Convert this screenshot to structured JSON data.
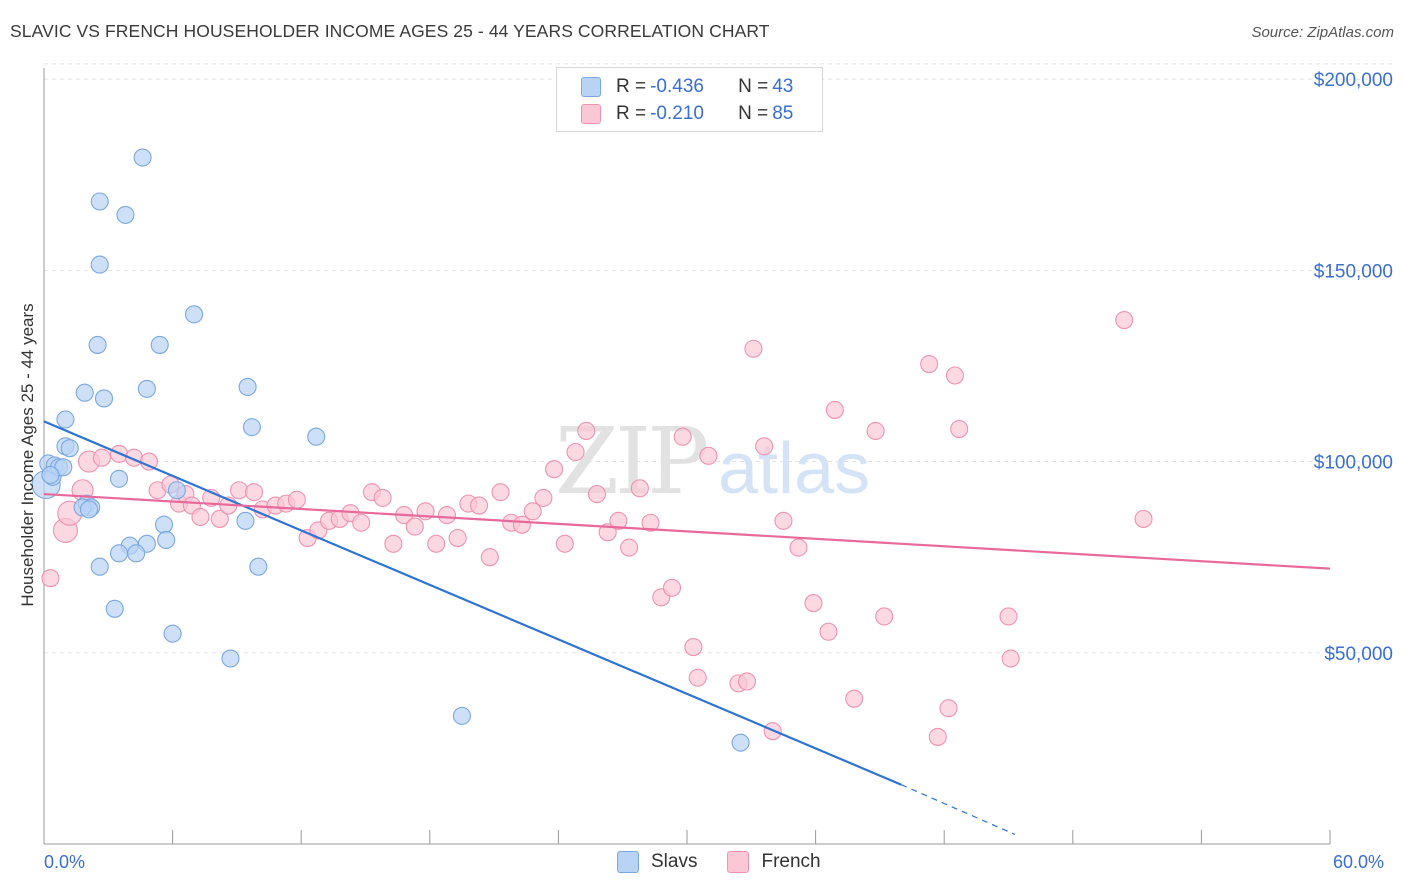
{
  "title": "SLAVIC VS FRENCH HOUSEHOLDER INCOME AGES 25 - 44 YEARS CORRELATION CHART",
  "source": "Source: ZipAtlas.com",
  "watermark": {
    "zip": "ZIP",
    "atlas": "atlas"
  },
  "legend_top": [
    {
      "r_label": "R = ",
      "r_value": "-0.436",
      "n_label": "N = ",
      "n_value": "43",
      "fill": "#b9d3f5",
      "stroke": "#7aa8e0"
    },
    {
      "r_label": "R = ",
      "r_value": "-0.210",
      "n_label": "N = ",
      "n_value": "85",
      "fill": "#f9c7d6",
      "stroke": "#ec94b1"
    }
  ],
  "legend_bottom": [
    {
      "label": "Slavs",
      "fill": "#b9d3f5",
      "stroke": "#7aa8e0"
    },
    {
      "label": "French",
      "fill": "#f9c7d6",
      "stroke": "#ec94b1"
    }
  ],
  "colors": {
    "slavs_line": "#2e74d3",
    "french_line": "#e8699a",
    "grid": "#e2e2e2",
    "axis_label": "#3a6fcf"
  },
  "chart_data": {
    "type": "scatter",
    "title": "SLAVIC VS FRENCH HOUSEHOLDER INCOME AGES 25 - 44 YEARS CORRELATION CHART",
    "xlabel": "",
    "ylabel": "Householder Income Ages 25 - 44 years",
    "xlim": [
      0,
      60
    ],
    "ylim": [
      0,
      205000
    ],
    "x_tick_labels": [
      "0.0%",
      "60.0%"
    ],
    "y_ticks": [
      50000,
      100000,
      150000,
      200000
    ],
    "y_tick_labels": [
      "$50,000",
      "$100,000",
      "$150,000",
      "$200,000"
    ],
    "grid": true,
    "legend_position": "top-center",
    "series": [
      {
        "name": "Slavs",
        "points": [
          [
            0.1,
            94000
          ],
          [
            0.2,
            99500
          ],
          [
            0.4,
            96000
          ],
          [
            0.5,
            99000
          ],
          [
            0.7,
            98500
          ],
          [
            0.9,
            98500
          ],
          [
            1.0,
            104000
          ],
          [
            1.2,
            103500
          ],
          [
            1.0,
            111000
          ],
          [
            2.0,
            89000
          ],
          [
            2.2,
            88000
          ],
          [
            1.9,
            118000
          ],
          [
            2.5,
            130500
          ],
          [
            2.8,
            116500
          ],
          [
            2.6,
            151500
          ],
          [
            2.6,
            168000
          ],
          [
            3.8,
            164500
          ],
          [
            4.6,
            179500
          ],
          [
            4.8,
            119000
          ],
          [
            5.4,
            130500
          ],
          [
            7.0,
            138500
          ],
          [
            9.5,
            119500
          ],
          [
            9.7,
            109000
          ],
          [
            12.7,
            106500
          ],
          [
            3.5,
            95500
          ],
          [
            6.2,
            92500
          ],
          [
            5.6,
            83500
          ],
          [
            5.7,
            79500
          ],
          [
            4.8,
            78500
          ],
          [
            4.0,
            78000
          ],
          [
            3.5,
            76000
          ],
          [
            4.3,
            76000
          ],
          [
            2.6,
            72500
          ],
          [
            3.3,
            61500
          ],
          [
            6.0,
            55000
          ],
          [
            8.7,
            48500
          ],
          [
            9.4,
            84500
          ],
          [
            10.0,
            72500
          ],
          [
            19.5,
            33500
          ],
          [
            32.5,
            26500
          ],
          [
            1.8,
            88000
          ],
          [
            2.1,
            87500
          ],
          [
            0.3,
            96500
          ]
        ],
        "trend": {
          "x0": 0,
          "y0": 110500,
          "x1": 40,
          "y1": 15500,
          "dash_to_x": 45.3,
          "dash_to_y": 2500
        }
      },
      {
        "name": "French",
        "points": [
          [
            0.3,
            69500
          ],
          [
            1.0,
            82000
          ],
          [
            1.2,
            86500
          ],
          [
            1.8,
            92500
          ],
          [
            2.1,
            100000
          ],
          [
            2.7,
            101000
          ],
          [
            3.5,
            102000
          ],
          [
            4.2,
            101000
          ],
          [
            4.9,
            100000
          ],
          [
            5.3,
            92500
          ],
          [
            5.9,
            94000
          ],
          [
            6.3,
            89000
          ],
          [
            6.6,
            91500
          ],
          [
            6.9,
            88500
          ],
          [
            7.3,
            85500
          ],
          [
            7.8,
            90500
          ],
          [
            8.2,
            85000
          ],
          [
            8.6,
            88500
          ],
          [
            9.1,
            92500
          ],
          [
            9.8,
            92000
          ],
          [
            10.2,
            87500
          ],
          [
            10.8,
            88500
          ],
          [
            11.3,
            89000
          ],
          [
            11.8,
            90000
          ],
          [
            12.3,
            80000
          ],
          [
            12.8,
            82000
          ],
          [
            13.3,
            84500
          ],
          [
            13.8,
            85000
          ],
          [
            14.3,
            86500
          ],
          [
            14.8,
            84000
          ],
          [
            15.3,
            92000
          ],
          [
            15.8,
            90500
          ],
          [
            16.3,
            78500
          ],
          [
            16.8,
            86000
          ],
          [
            17.3,
            83000
          ],
          [
            17.8,
            87000
          ],
          [
            18.3,
            78500
          ],
          [
            18.8,
            86000
          ],
          [
            19.3,
            80000
          ],
          [
            19.8,
            89000
          ],
          [
            20.3,
            88500
          ],
          [
            20.8,
            75000
          ],
          [
            21.3,
            92000
          ],
          [
            21.8,
            84000
          ],
          [
            22.3,
            83500
          ],
          [
            22.8,
            87000
          ],
          [
            23.3,
            90500
          ],
          [
            23.8,
            98000
          ],
          [
            24.3,
            78500
          ],
          [
            24.8,
            102500
          ],
          [
            25.3,
            108000
          ],
          [
            25.8,
            91500
          ],
          [
            26.3,
            81500
          ],
          [
            26.8,
            84500
          ],
          [
            27.3,
            77500
          ],
          [
            27.8,
            93000
          ],
          [
            28.3,
            84000
          ],
          [
            28.8,
            64500
          ],
          [
            29.3,
            67000
          ],
          [
            29.8,
            106500
          ],
          [
            30.3,
            51500
          ],
          [
            30.5,
            43500
          ],
          [
            31.0,
            101500
          ],
          [
            32.4,
            42000
          ],
          [
            32.8,
            42500
          ],
          [
            33.1,
            129500
          ],
          [
            33.6,
            104000
          ],
          [
            34.0,
            29500
          ],
          [
            34.5,
            84500
          ],
          [
            35.2,
            77500
          ],
          [
            35.9,
            63000
          ],
          [
            36.6,
            55500
          ],
          [
            36.9,
            113500
          ],
          [
            37.8,
            38000
          ],
          [
            38.8,
            108000
          ],
          [
            39.2,
            59500
          ],
          [
            41.3,
            125500
          ],
          [
            41.7,
            28000
          ],
          [
            42.2,
            35500
          ],
          [
            42.5,
            122500
          ],
          [
            42.7,
            108500
          ],
          [
            45.0,
            59500
          ],
          [
            45.1,
            48500
          ],
          [
            50.4,
            137000
          ],
          [
            51.3,
            85000
          ]
        ],
        "trend": {
          "x0": 0,
          "y0": 91500,
          "x1": 60,
          "y1": 72000
        }
      }
    ]
  }
}
